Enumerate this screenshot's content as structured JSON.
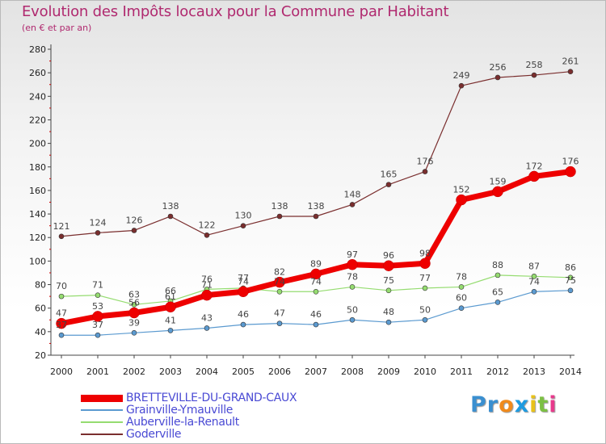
{
  "title": "Evolution des Impôts locaux pour la Commune par Habitant",
  "subtitle": "(en € et par an)",
  "logo": {
    "text": "Proxiti",
    "colors": [
      "#3a8fd0",
      "#3a8fd0",
      "#f08a1c",
      "#1e9be0",
      "#e8c21a",
      "#7cc043",
      "#e83a8c"
    ]
  },
  "chart_data": {
    "type": "line",
    "title": "Evolution des Impôts locaux pour la Commune par Habitant",
    "subtitle": "(en € et par an)",
    "x": [
      "2000",
      "2001",
      "2002",
      "2003",
      "2004",
      "2005",
      "2006",
      "2007",
      "2008",
      "2009",
      "2010",
      "2011",
      "2012",
      "2013",
      "2014"
    ],
    "ylim": [
      20,
      280
    ],
    "yticks": [
      20,
      40,
      60,
      80,
      100,
      120,
      140,
      160,
      180,
      200,
      220,
      240,
      260,
      280
    ],
    "grid": false,
    "legend_position": "bottom-left",
    "series": [
      {
        "name": "BRETTEVILLE-DU-GRAND-CAUX",
        "color": "#ee0000",
        "values": [
          47,
          53,
          56,
          61,
          71,
          74,
          82,
          89,
          97,
          96,
          98,
          152,
          159,
          172,
          176
        ]
      },
      {
        "name": "Grainville-Ymauville",
        "color": "#5b9ad0",
        "values": [
          37,
          37,
          39,
          41,
          43,
          46,
          47,
          46,
          50,
          48,
          50,
          60,
          65,
          74,
          75
        ]
      },
      {
        "name": "Auberville-la-Renault",
        "color": "#95dc70",
        "values": [
          70,
          71,
          63,
          66,
          76,
          77,
          74,
          74,
          78,
          75,
          77,
          78,
          88,
          87,
          86
        ]
      },
      {
        "name": "Goderville",
        "color": "#7a2e2e",
        "values": [
          121,
          124,
          126,
          138,
          122,
          130,
          138,
          138,
          148,
          165,
          176,
          249,
          256,
          258,
          261
        ]
      }
    ]
  }
}
